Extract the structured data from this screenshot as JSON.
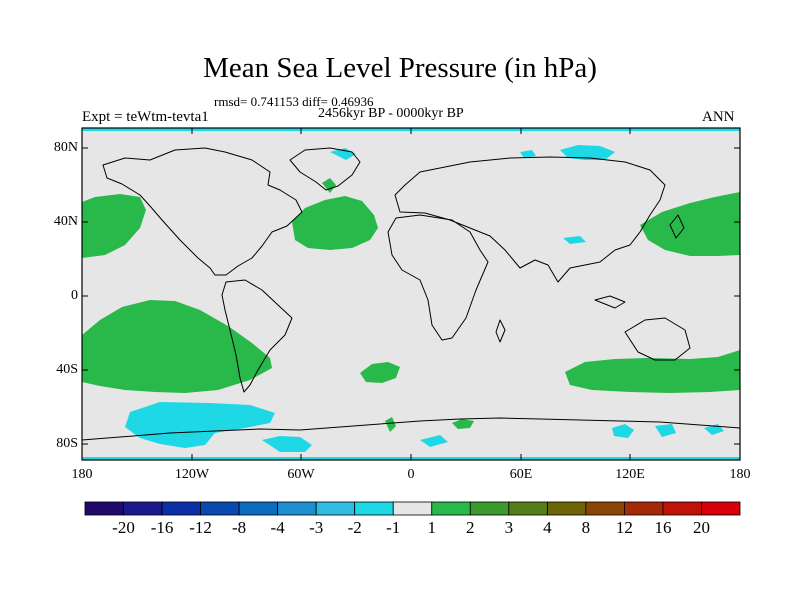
{
  "title": "Mean Sea Level Pressure (in hPa)",
  "stats_line": "rmsd= 0.741153 diff= 0.46936",
  "period": "2456kyr BP - 0000kyr BP",
  "experiment": "Expt = teWtm-tevta1",
  "season": "ANN",
  "lat_labels": [
    "80N",
    "40N",
    "0",
    "40S",
    "80S"
  ],
  "lon_labels": [
    "180",
    "120W",
    "60W",
    "0",
    "60E",
    "120E",
    "180"
  ],
  "colorbar": {
    "levels": [
      "-20",
      "-16",
      "-12",
      "-8",
      "-4",
      "-3",
      "-2",
      "-1",
      "1",
      "2",
      "3",
      "4",
      "8",
      "12",
      "16",
      "20"
    ],
    "colors": [
      "#210a6b",
      "#1a1a8c",
      "#0b2fa8",
      "#0a4ab0",
      "#0b6cc0",
      "#1d8fd0",
      "#2ebde0",
      "#1fd8e6",
      "#e6e6e6",
      "#29b84a",
      "#3c9a2e",
      "#557d18",
      "#6b6408",
      "#8a4506",
      "#a52a0a",
      "#c0120a",
      "#d7000a"
    ]
  },
  "colors": {
    "land_background": "#e6e6e6",
    "positive_anomaly": "#29b84a",
    "negative_anomaly": "#1fd8e6",
    "frame": "#1fd8e6"
  }
}
